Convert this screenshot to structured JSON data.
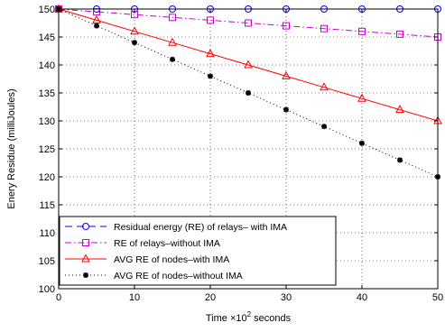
{
  "chart_data": {
    "type": "line",
    "xlabel": "Time ×10² seconds",
    "xlabel_parts": {
      "before": "Time ×10",
      "sup": "2",
      "after": " seconds"
    },
    "ylabel": "Enery Residue (milliJoules)",
    "xlim": [
      0,
      50
    ],
    "ylim": [
      100,
      150
    ],
    "xticks": [
      0,
      10,
      20,
      30,
      40,
      50
    ],
    "yticks": [
      100,
      105,
      110,
      115,
      120,
      125,
      130,
      135,
      140,
      145,
      150
    ],
    "grid": "dotted",
    "legend_position": "bottom-left",
    "series": [
      {
        "name": "Residual energy (RE) of relays– with IMA",
        "color": "#0000ff",
        "line_style": "dashed",
        "marker": "circle",
        "x": [
          0,
          5,
          10,
          15,
          20,
          25,
          30,
          35,
          40,
          45,
          50
        ],
        "y": [
          150,
          150,
          150,
          150,
          150,
          150,
          150,
          150,
          150,
          150,
          150
        ]
      },
      {
        "name": "RE of relays–without IMA",
        "color": "#cc00cc",
        "line_style": "dashdot",
        "marker": "square",
        "x": [
          0,
          5,
          10,
          15,
          20,
          25,
          30,
          35,
          40,
          45,
          50
        ],
        "y": [
          150,
          149.5,
          149,
          148.5,
          148,
          147.5,
          147,
          146.5,
          146,
          145.5,
          145
        ]
      },
      {
        "name": "AVG RE of nodes–with IMA",
        "color": "#ff0000",
        "line_style": "solid",
        "marker": "triangle",
        "x": [
          0,
          5,
          10,
          15,
          20,
          25,
          30,
          35,
          40,
          45,
          50
        ],
        "y": [
          150,
          148,
          146,
          144,
          142,
          140,
          138,
          136,
          134,
          132,
          130
        ]
      },
      {
        "name": "AVG RE of nodes–without IMA",
        "color": "#000000",
        "line_style": "dotted",
        "marker": "star",
        "x": [
          0,
          5,
          10,
          15,
          20,
          25,
          30,
          35,
          40,
          45,
          50
        ],
        "y": [
          150,
          147,
          144,
          141,
          138,
          135,
          132,
          129,
          126,
          123,
          120
        ]
      }
    ]
  }
}
